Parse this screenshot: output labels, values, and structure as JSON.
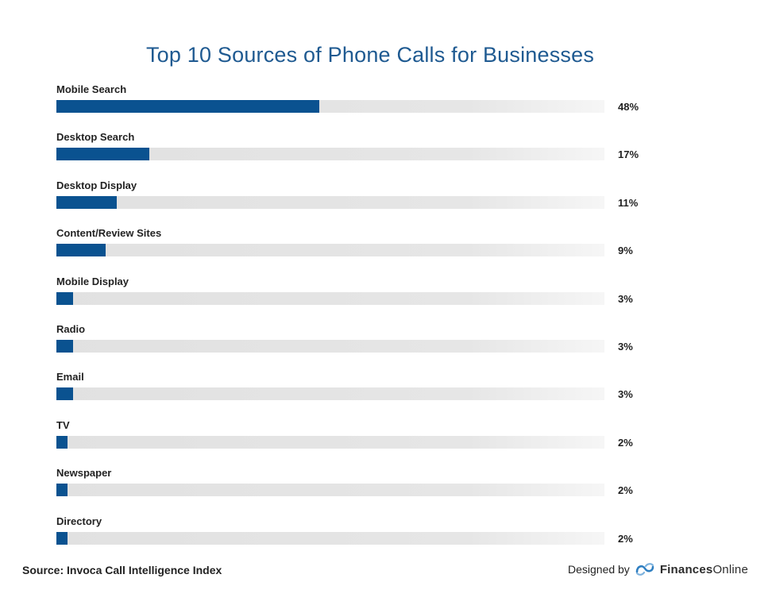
{
  "chart_data": {
    "type": "bar",
    "orientation": "horizontal",
    "title": "Top 10 Sources of Phone Calls for Businesses",
    "categories": [
      "Mobile Search",
      "Desktop Search",
      "Desktop Display",
      "Content/Review Sites",
      "Mobile Display",
      "Radio",
      "Email",
      "TV",
      "Newspaper",
      "Directory"
    ],
    "values": [
      48,
      17,
      11,
      9,
      3,
      3,
      3,
      2,
      2,
      2
    ],
    "value_labels": [
      "48%",
      "17%",
      "11%",
      "9%",
      "3%",
      "3%",
      "3%",
      "2%",
      "2%",
      "2%"
    ],
    "xlim": [
      0,
      100
    ],
    "unit": "%",
    "bar_color": "#0a5290",
    "track_color": "#e3e3e3",
    "title_color": "#1f5a91",
    "grid": false,
    "legend": "none"
  },
  "footer": {
    "source": "Source: Invoca Call Intelligence Index",
    "designed_by": "Designed by",
    "brand_part1": "Finances",
    "brand_part2": "Online",
    "logo_icon": "finances-online-logo-icon"
  }
}
